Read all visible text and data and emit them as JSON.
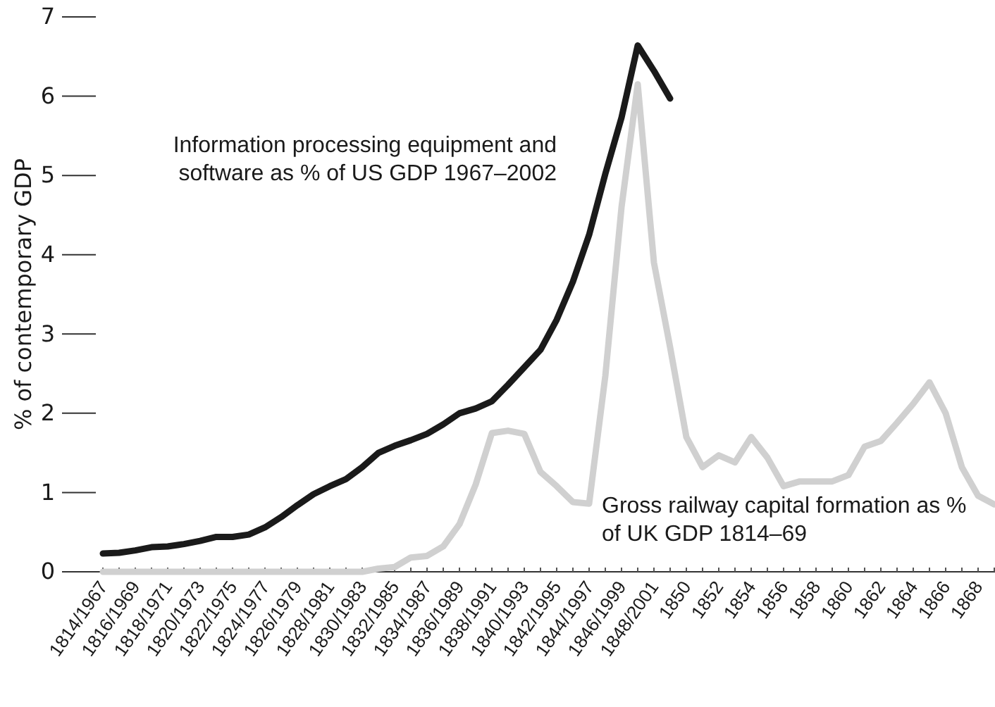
{
  "chart_data": {
    "type": "line",
    "ylabel": "% of contemporary GDP",
    "ylim": [
      0,
      7
    ],
    "yticks": [
      0,
      1,
      2,
      3,
      4,
      5,
      6,
      7
    ],
    "grid": false,
    "marker": "none",
    "line_style": "solid",
    "categories": [
      "1814/1967",
      null,
      "1816/1969",
      null,
      "1818/1971",
      null,
      "1820/1973",
      null,
      "1822/1975",
      null,
      "1824/1977",
      null,
      "1826/1979",
      null,
      "1828/1981",
      null,
      "1830/1983",
      null,
      "1832/1985",
      null,
      "1834/1987",
      null,
      "1836/1989",
      null,
      "1838/1991",
      null,
      "1840/1993",
      null,
      "1842/1995",
      null,
      "1844/1997",
      null,
      "1846/1999",
      null,
      "1848/2001",
      null,
      "1850",
      null,
      "1852",
      null,
      "1854",
      null,
      "1856",
      null,
      "1858",
      null,
      "1860",
      null,
      "1862",
      null,
      "1864",
      null,
      "1866",
      null,
      "1868",
      null
    ],
    "series": [
      {
        "name": "Information processing equipment and software as % of US GDP 1967–2002",
        "color": "#1a1a1a",
        "values": [
          0.23,
          0.24,
          0.27,
          0.31,
          0.32,
          0.35,
          0.39,
          0.44,
          0.44,
          0.47,
          0.56,
          0.69,
          0.84,
          0.98,
          1.08,
          1.17,
          1.32,
          1.5,
          1.59,
          1.66,
          1.74,
          1.86,
          2.0,
          2.06,
          2.15,
          2.36,
          2.58,
          2.8,
          3.18,
          3.66,
          4.25,
          5.02,
          5.73,
          6.64,
          6.32,
          5.97,
          null,
          null,
          null,
          null,
          null,
          null,
          null,
          null,
          null,
          null,
          null,
          null,
          null,
          null,
          null,
          null,
          null,
          null,
          null,
          null
        ]
      },
      {
        "name": "Gross railway capital formation as % of UK GDP 1814–69",
        "color": "#d0d0d0",
        "values": [
          0,
          0,
          0,
          0,
          0,
          0,
          0,
          0,
          0,
          0,
          0,
          0,
          0,
          0,
          0,
          0,
          0,
          0.04,
          0.06,
          0.18,
          0.2,
          0.32,
          0.6,
          1.1,
          1.75,
          1.78,
          1.74,
          1.26,
          1.08,
          0.88,
          0.86,
          2.47,
          4.6,
          6.15,
          3.9,
          2.83,
          1.7,
          1.32,
          1.47,
          1.38,
          1.7,
          1.44,
          1.08,
          1.14,
          1.14,
          1.14,
          1.22,
          1.58,
          1.65,
          1.88,
          2.12,
          2.39,
          2.0,
          1.32,
          0.96,
          0.85
        ]
      }
    ]
  }
}
